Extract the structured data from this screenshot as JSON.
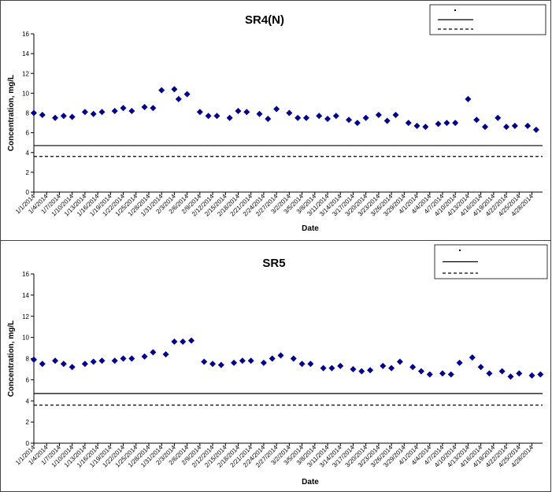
{
  "chart_data": [
    {
      "type": "scatter",
      "title": "SR4(N)",
      "xlabel": "Date",
      "ylabel": "Concentration, mg/L",
      "ylim": [
        0,
        16
      ],
      "yticks": [
        "0",
        "2",
        "4",
        "6",
        "8",
        "10",
        "12",
        "14",
        "16"
      ],
      "x_tick_labels": [
        "1/1/2014",
        "1/4/2014",
        "1/7/2014",
        "1/10/2014",
        "1/13/2014",
        "1/16/2014",
        "1/19/2014",
        "1/22/2014",
        "1/25/2014",
        "1/28/2014",
        "1/31/2014",
        "2/3/2014",
        "2/6/2014",
        "2/9/2014",
        "2/12/2014",
        "2/15/2014",
        "2/18/2014",
        "2/21/2014",
        "2/24/2014",
        "2/27/2014",
        "3/2/2014",
        "3/5/2014",
        "3/8/2014",
        "3/11/2014",
        "3/14/2014",
        "3/17/2014",
        "3/20/2014",
        "3/23/2014",
        "3/26/2014",
        "3/29/2014",
        "4/1/2014",
        "4/4/2014",
        "4/7/2014",
        "4/10/2014",
        "4/13/2014",
        "4/16/2014",
        "4/19/2014",
        "4/22/2014",
        "4/25/2014",
        "4/28/2014"
      ],
      "grid": false,
      "legend": "top-right",
      "legend_entries": [
        "",
        "",
        ""
      ],
      "marker_color": "#00008B",
      "series": [
        {
          "values": [
            [
              "1/1/2014",
              8.0
            ],
            [
              "1/3/2014",
              7.8
            ],
            [
              "1/6/2014",
              7.5
            ],
            [
              "1/8/2014",
              7.7
            ],
            [
              "1/10/2014",
              7.6
            ],
            [
              "1/13/2014",
              8.1
            ],
            [
              "1/15/2014",
              7.9
            ],
            [
              "1/17/2014",
              8.1
            ],
            [
              "1/20/2014",
              8.2
            ],
            [
              "1/22/2014",
              8.5
            ],
            [
              "1/24/2014",
              8.2
            ],
            [
              "1/27/2014",
              8.6
            ],
            [
              "1/29/2014",
              8.5
            ],
            [
              "1/31/2014",
              10.3
            ],
            [
              "2/3/2014",
              10.4
            ],
            [
              "2/4/2014",
              9.4
            ],
            [
              "2/6/2014",
              9.9
            ],
            [
              "2/9/2014",
              8.1
            ],
            [
              "2/11/2014",
              7.7
            ],
            [
              "2/13/2014",
              7.7
            ],
            [
              "2/16/2014",
              7.5
            ],
            [
              "2/18/2014",
              8.2
            ],
            [
              "2/20/2014",
              8.1
            ],
            [
              "2/23/2014",
              7.9
            ],
            [
              "2/25/2014",
              7.4
            ],
            [
              "2/27/2014",
              8.4
            ],
            [
              "3/2/2014",
              8.0
            ],
            [
              "3/4/2014",
              7.5
            ],
            [
              "3/6/2014",
              7.5
            ],
            [
              "3/9/2014",
              7.7
            ],
            [
              "3/11/2014",
              7.4
            ],
            [
              "3/13/2014",
              7.7
            ],
            [
              "3/16/2014",
              7.3
            ],
            [
              "3/18/2014",
              7.0
            ],
            [
              "3/20/2014",
              7.5
            ],
            [
              "3/23/2014",
              7.8
            ],
            [
              "3/25/2014",
              7.2
            ],
            [
              "3/27/2014",
              7.8
            ],
            [
              "3/30/2014",
              7.0
            ],
            [
              "4/1/2014",
              6.7
            ],
            [
              "4/3/2014",
              6.6
            ],
            [
              "4/6/2014",
              6.9
            ],
            [
              "4/8/2014",
              7.0
            ],
            [
              "4/10/2014",
              7.0
            ],
            [
              "4/13/2014",
              9.4
            ],
            [
              "4/15/2014",
              7.3
            ],
            [
              "4/17/2014",
              6.6
            ],
            [
              "4/20/2014",
              7.5
            ],
            [
              "4/22/2014",
              6.6
            ],
            [
              "4/24/2014",
              6.7
            ],
            [
              "4/27/2014",
              6.7
            ],
            [
              "4/29/2014",
              6.3
            ]
          ]
        }
      ],
      "reference_lines": [
        {
          "style": "solid",
          "value": 4.7
        },
        {
          "style": "dashed",
          "value": 3.6
        }
      ]
    },
    {
      "type": "scatter",
      "title": "SR5",
      "xlabel": "Date",
      "ylabel": "Concentration, mg/L",
      "ylim": [
        0,
        16
      ],
      "yticks": [
        "0",
        "2",
        "4",
        "6",
        "8",
        "10",
        "12",
        "14",
        "16"
      ],
      "x_tick_labels": [
        "1/1/2014",
        "1/4/2014",
        "1/7/2014",
        "1/10/2014",
        "1/13/2014",
        "1/16/2014",
        "1/19/2014",
        "1/22/2014",
        "1/25/2014",
        "1/28/2014",
        "1/31/2014",
        "2/3/2014",
        "2/6/2014",
        "2/9/2014",
        "2/12/2014",
        "2/15/2014",
        "2/18/2014",
        "2/21/2014",
        "2/24/2014",
        "2/27/2014",
        "3/2/2014",
        "3/5/2014",
        "3/8/2014",
        "3/11/2014",
        "3/14/2014",
        "3/17/2014",
        "3/20/2014",
        "3/23/2014",
        "3/26/2014",
        "3/29/2014",
        "4/1/2014",
        "4/4/2014",
        "4/7/2014",
        "4/10/2014",
        "4/13/2014",
        "4/16/2014",
        "4/19/2014",
        "4/22/2014",
        "4/25/2014",
        "4/28/2014"
      ],
      "grid": false,
      "legend": "top-right",
      "legend_entries": [
        "",
        "",
        ""
      ],
      "marker_color": "#00008B",
      "series": [
        {
          "values": [
            [
              "1/1/2014",
              7.9
            ],
            [
              "1/3/2014",
              7.5
            ],
            [
              "1/6/2014",
              7.8
            ],
            [
              "1/8/2014",
              7.5
            ],
            [
              "1/10/2014",
              7.2
            ],
            [
              "1/13/2014",
              7.5
            ],
            [
              "1/15/2014",
              7.7
            ],
            [
              "1/17/2014",
              7.8
            ],
            [
              "1/20/2014",
              7.8
            ],
            [
              "1/22/2014",
              8.0
            ],
            [
              "1/24/2014",
              8.0
            ],
            [
              "1/27/2014",
              8.2
            ],
            [
              "1/29/2014",
              8.6
            ],
            [
              "2/1/2014",
              8.4
            ],
            [
              "2/3/2014",
              9.6
            ],
            [
              "2/5/2014",
              9.6
            ],
            [
              "2/7/2014",
              9.7
            ],
            [
              "2/10/2014",
              7.7
            ],
            [
              "2/12/2014",
              7.5
            ],
            [
              "2/14/2014",
              7.4
            ],
            [
              "2/17/2014",
              7.6
            ],
            [
              "2/19/2014",
              7.8
            ],
            [
              "2/21/2014",
              7.8
            ],
            [
              "2/24/2014",
              7.6
            ],
            [
              "2/26/2014",
              8.0
            ],
            [
              "2/28/2014",
              8.3
            ],
            [
              "3/3/2014",
              8.0
            ],
            [
              "3/5/2014",
              7.5
            ],
            [
              "3/7/2014",
              7.5
            ],
            [
              "3/10/2014",
              7.1
            ],
            [
              "3/12/2014",
              7.1
            ],
            [
              "3/14/2014",
              7.3
            ],
            [
              "3/17/2014",
              7.0
            ],
            [
              "3/19/2014",
              6.8
            ],
            [
              "3/21/2014",
              6.9
            ],
            [
              "3/24/2014",
              7.3
            ],
            [
              "3/26/2014",
              7.1
            ],
            [
              "3/28/2014",
              7.7
            ],
            [
              "3/31/2014",
              7.2
            ],
            [
              "4/2/2014",
              6.8
            ],
            [
              "4/4/2014",
              6.5
            ],
            [
              "4/7/2014",
              6.6
            ],
            [
              "4/9/2014",
              6.5
            ],
            [
              "4/11/2014",
              7.6
            ],
            [
              "4/14/2014",
              8.1
            ],
            [
              "4/16/2014",
              7.2
            ],
            [
              "4/18/2014",
              6.6
            ],
            [
              "4/21/2014",
              6.8
            ],
            [
              "4/23/2014",
              6.3
            ],
            [
              "4/25/2014",
              6.6
            ],
            [
              "4/28/2014",
              6.4
            ],
            [
              "4/30/2014",
              6.5
            ]
          ]
        }
      ],
      "reference_lines": [
        {
          "style": "solid",
          "value": 4.7
        },
        {
          "style": "dashed",
          "value": 3.6
        }
      ]
    }
  ]
}
